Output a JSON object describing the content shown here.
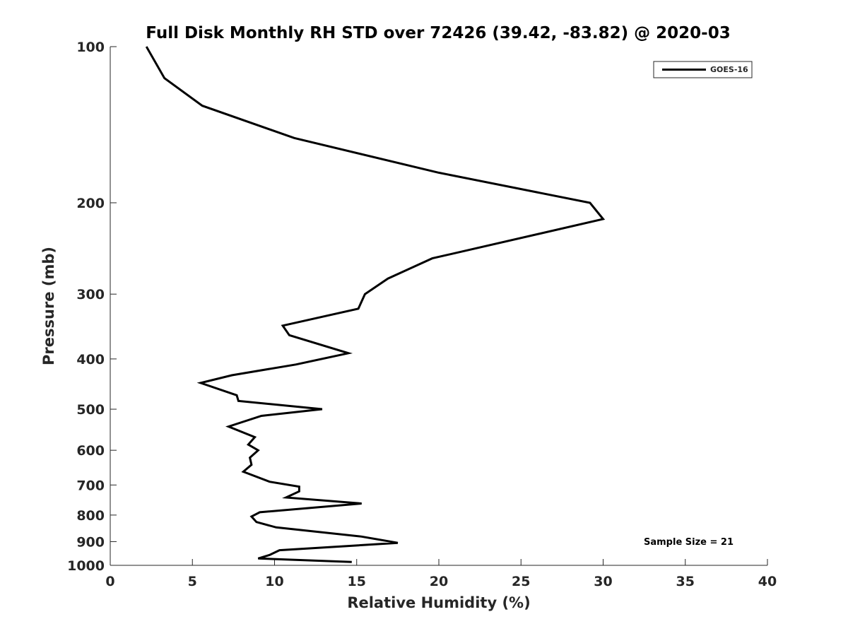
{
  "chart_data": {
    "type": "line",
    "title": "Full Disk Monthly RH STD over 72426 (39.42, -83.82) @ 2020-03",
    "xlabel": "Relative Humidity (%)",
    "ylabel": "Pressure (mb)",
    "xlim": [
      0,
      40
    ],
    "ylim": [
      100,
      1000
    ],
    "y_scale": "log",
    "y_reversed": true,
    "x_ticks": [
      0,
      5,
      10,
      15,
      20,
      25,
      30,
      35,
      40
    ],
    "y_ticks": [
      100,
      200,
      300,
      400,
      500,
      600,
      700,
      800,
      900,
      1000
    ],
    "grid": false,
    "legend_position": "top-right",
    "annotation": "Sample Size = 21",
    "line_color": "#000000",
    "series": [
      {
        "name": "GOES-16",
        "x": [
          2.2,
          3.3,
          5.6,
          11.2,
          20,
          29.2,
          30,
          19.6,
          16.9,
          15.5,
          15.1,
          10.5,
          10.9,
          14.5,
          11.3,
          7.4,
          5.5,
          7.7,
          7.8,
          12.9,
          9.2,
          7.2,
          8.8,
          8.4,
          9.0,
          8.5,
          8.6,
          8.1,
          9.7,
          11.5,
          11.5,
          10.7,
          15.3,
          9.1,
          8.6,
          8.9,
          10.1,
          15.3,
          17.5,
          15.1,
          10.3,
          9.7,
          9.0,
          14.7
        ],
        "y": [
          100,
          115,
          130,
          150,
          175,
          200,
          215,
          256,
          280,
          300,
          320,
          345,
          360,
          390,
          410,
          430,
          445,
          470,
          482,
          500,
          515,
          540,
          566,
          585,
          600,
          620,
          640,
          660,
          690,
          705,
          720,
          740,
          760,
          790,
          805,
          825,
          845,
          880,
          905,
          915,
          935,
          955,
          970,
          985
        ]
      }
    ]
  }
}
